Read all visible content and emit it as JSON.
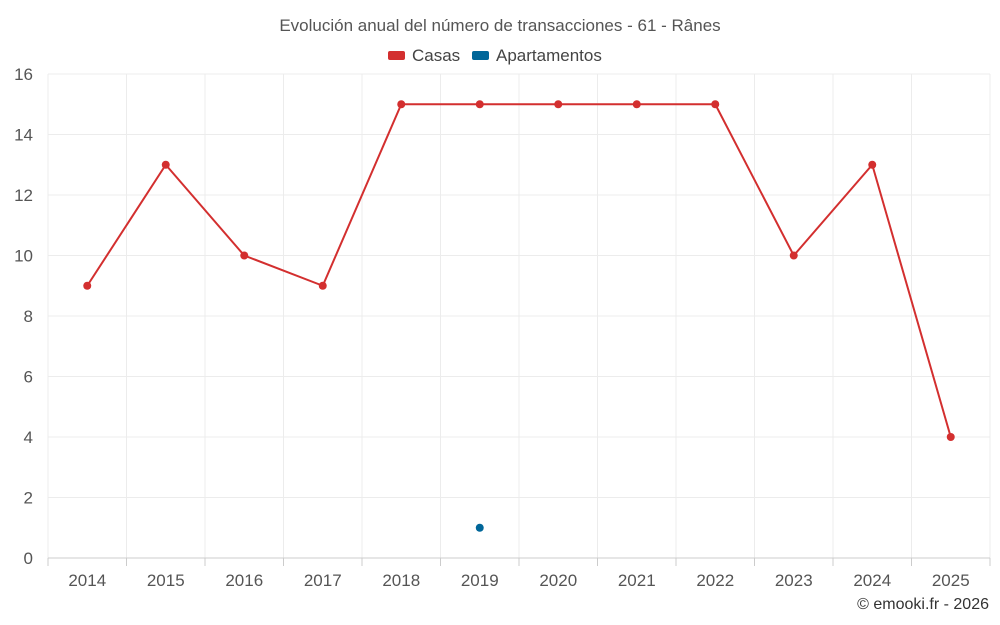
{
  "chart_data": {
    "type": "line",
    "title": "Evolución anual del número de transacciones - 61 - Rânes",
    "categories": [
      "2014",
      "2015",
      "2016",
      "2017",
      "2018",
      "2019",
      "2020",
      "2021",
      "2022",
      "2023",
      "2024",
      "2025"
    ],
    "ylim": [
      0,
      16
    ],
    "yticks": [
      0,
      2,
      4,
      6,
      8,
      10,
      12,
      14,
      16
    ],
    "grid": true,
    "legend_position": "top-center",
    "series": [
      {
        "name": "Casas",
        "color": "#d32f2f",
        "values": [
          9,
          13,
          10,
          9,
          15,
          15,
          15,
          15,
          15,
          10,
          13,
          4
        ]
      },
      {
        "name": "Apartamentos",
        "color": "#006699",
        "values": [
          null,
          null,
          null,
          null,
          null,
          1,
          null,
          null,
          null,
          null,
          null,
          null
        ]
      }
    ],
    "credit": "© emooki.fr - 2026"
  }
}
